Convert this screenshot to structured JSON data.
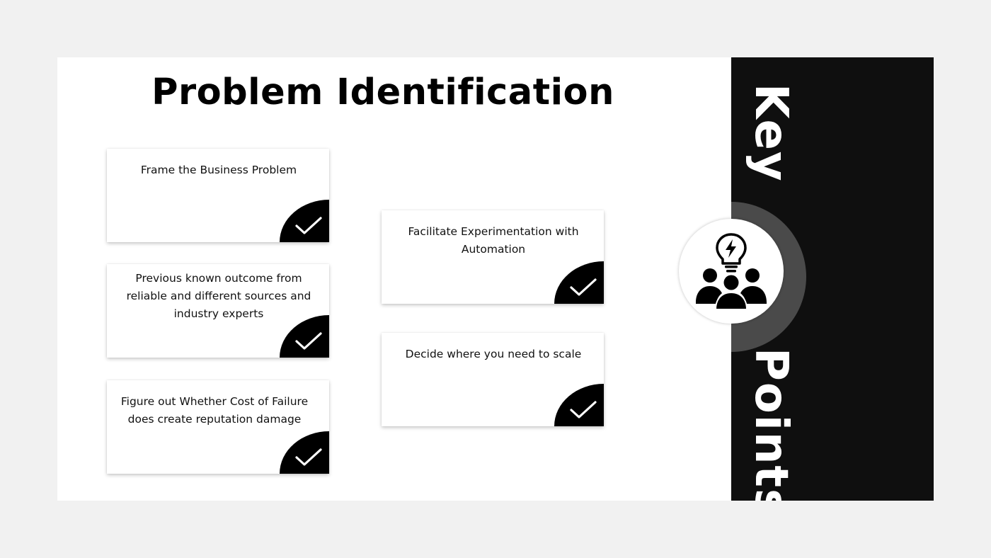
{
  "slide": {
    "title": "Problem Identification",
    "side_label_top": "Key",
    "side_label_bottom": "Points",
    "center_icon": "team-idea-icon"
  },
  "cards": [
    {
      "text": "Frame the Business Problem",
      "icon": "checkmark-icon"
    },
    {
      "text": "Previous known outcome from reliable and different  sources and industry experts",
      "icon": "checkmark-icon"
    },
    {
      "text": "Figure out Whether Cost of Failure does create reputation damage",
      "icon": "checkmark-icon"
    },
    {
      "text": "Facilitate Experimentation with Automation",
      "icon": "checkmark-icon"
    },
    {
      "text": "Decide where you need to scale",
      "icon": "checkmark-icon"
    }
  ],
  "colors": {
    "background": "#f1f1f1",
    "slide": "#ffffff",
    "sidebar": "#0f0f0f",
    "ring": "#4a4a4a",
    "accent": "#000000"
  }
}
